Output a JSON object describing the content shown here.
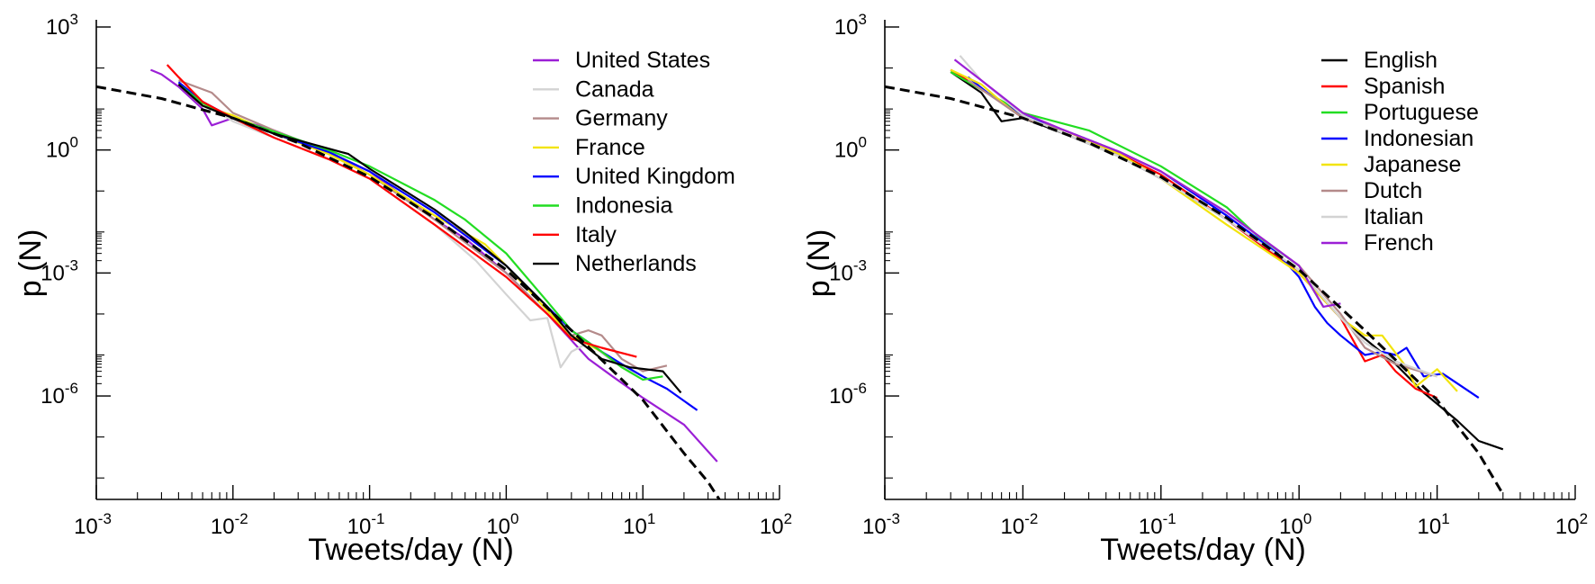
{
  "chart_data": [
    {
      "type": "line",
      "xscale": "log",
      "yscale": "log",
      "xlim": [
        0.001,
        100
      ],
      "ylim": [
        3e-09,
        1000
      ],
      "xlabel": "Tweets/day (N)",
      "ylabel": "p (N)",
      "xticks": [
        {
          "base": "10",
          "exp": "-3"
        },
        {
          "base": "10",
          "exp": "-2"
        },
        {
          "base": "10",
          "exp": "-1"
        },
        {
          "base": "10",
          "exp": "0"
        },
        {
          "base": "10",
          "exp": "1"
        },
        {
          "base": "10",
          "exp": "2"
        }
      ],
      "yticks": [
        {
          "base": "10",
          "exp": "-6",
          "value": 1e-06
        },
        {
          "base": "10",
          "exp": "-3",
          "value": 0.001
        },
        {
          "base": "10",
          "exp": "0",
          "value": 1
        },
        {
          "base": "10",
          "exp": "3",
          "value": 1000
        }
      ],
      "legend_position": "top-right",
      "fit": {
        "style": "dashed",
        "color": "#000000",
        "x": [
          0.001,
          0.003,
          0.01,
          0.03,
          0.1,
          0.3,
          1,
          3,
          10,
          20,
          30,
          40
        ],
        "y": [
          35,
          18,
          6,
          1.5,
          0.22,
          0.022,
          0.0012,
          4e-05,
          8e-07,
          4e-08,
          8e-09,
          1.8e-09
        ]
      },
      "series": [
        {
          "name": "United States",
          "color": "#9b1fd6",
          "x": [
            0.0025,
            0.003,
            0.004,
            0.006,
            0.007,
            0.01,
            0.02,
            0.05,
            0.1,
            0.3,
            0.5,
            1,
            2,
            4,
            6,
            10,
            20,
            35
          ],
          "y": [
            90,
            70,
            35,
            10,
            4,
            6,
            3,
            0.9,
            0.3,
            0.02,
            0.007,
            0.001,
            0.0001,
            8e-06,
            3e-06,
            9e-07,
            2e-07,
            2.5e-08
          ]
        },
        {
          "name": "Canada",
          "color": "#d3d3d3",
          "x": [
            0.004,
            0.006,
            0.01,
            0.02,
            0.05,
            0.1,
            0.3,
            0.6,
            1,
            1.5,
            2,
            2.5,
            3,
            4,
            6,
            10
          ],
          "y": [
            45,
            15,
            5,
            2,
            0.6,
            0.2,
            0.015,
            0.002,
            0.0003,
            7e-05,
            8e-05,
            5e-06,
            1.2e-05,
            2e-05,
            7e-06,
            3e-06
          ]
        },
        {
          "name": "Germany",
          "color": "#b48a8a",
          "x": [
            0.004,
            0.007,
            0.01,
            0.02,
            0.05,
            0.1,
            0.3,
            1,
            2,
            3,
            4,
            5,
            7,
            10,
            15
          ],
          "y": [
            50,
            25,
            8,
            3,
            0.9,
            0.25,
            0.02,
            0.001,
            0.0001,
            3e-05,
            4e-05,
            3e-05,
            8e-06,
            4e-06,
            5.5e-06
          ]
        },
        {
          "name": "France",
          "color": "#f2e40c",
          "x": [
            0.004,
            0.006,
            0.01,
            0.02,
            0.05,
            0.1,
            0.3,
            0.7,
            1,
            2,
            3,
            5
          ],
          "y": [
            40,
            12,
            7,
            2.5,
            0.8,
            0.25,
            0.025,
            0.005,
            0.0015,
            0.00012,
            3e-05,
            1.2e-05
          ]
        },
        {
          "name": "United Kingdom",
          "color": "#0000ff",
          "x": [
            0.004,
            0.006,
            0.01,
            0.02,
            0.05,
            0.1,
            0.3,
            1,
            2,
            3,
            5,
            7,
            10,
            15,
            25
          ],
          "y": [
            45,
            15,
            6,
            2.5,
            0.9,
            0.3,
            0.03,
            0.0015,
            0.00015,
            4e-05,
            1.2e-05,
            6e-06,
            3e-06,
            1.5e-06,
            4.5e-07
          ]
        },
        {
          "name": "Indonesia",
          "color": "#22dd22",
          "x": [
            0.004,
            0.006,
            0.01,
            0.02,
            0.05,
            0.1,
            0.3,
            0.5,
            1,
            2,
            3,
            5,
            7,
            10,
            14
          ],
          "y": [
            40,
            14,
            6,
            2.8,
            1,
            0.4,
            0.06,
            0.02,
            0.003,
            0.0002,
            4e-05,
            1.2e-05,
            5e-06,
            2.5e-06,
            3e-06
          ]
        },
        {
          "name": "Italy",
          "color": "#ff0000",
          "x": [
            0.0033,
            0.004,
            0.006,
            0.01,
            0.02,
            0.05,
            0.1,
            0.3,
            1,
            2,
            3,
            5,
            9
          ],
          "y": [
            120,
            60,
            15,
            6,
            2,
            0.6,
            0.2,
            0.015,
            0.0008,
            0.0001,
            2.5e-05,
            1.5e-05,
            9e-06
          ]
        },
        {
          "name": "Netherlands",
          "color": "#000000",
          "x": [
            0.004,
            0.006,
            0.01,
            0.02,
            0.07,
            0.1,
            0.3,
            0.5,
            1,
            2,
            3,
            5,
            8,
            14,
            19
          ],
          "y": [
            40,
            12,
            6,
            2.5,
            0.8,
            0.35,
            0.035,
            0.01,
            0.0015,
            0.00015,
            3e-05,
            8e-06,
            5e-06,
            4e-06,
            1.2e-06
          ]
        }
      ]
    },
    {
      "type": "line",
      "xscale": "log",
      "yscale": "log",
      "xlim": [
        0.001,
        100
      ],
      "ylim": [
        3e-09,
        1000
      ],
      "xlabel": "Tweets/day (N)",
      "ylabel": "p (N)",
      "xticks": [
        {
          "base": "10",
          "exp": "-3"
        },
        {
          "base": "10",
          "exp": "-2"
        },
        {
          "base": "10",
          "exp": "-1"
        },
        {
          "base": "10",
          "exp": "0"
        },
        {
          "base": "10",
          "exp": "1"
        },
        {
          "base": "10",
          "exp": "2"
        }
      ],
      "yticks": [
        {
          "base": "10",
          "exp": "-6",
          "value": 1e-06
        },
        {
          "base": "10",
          "exp": "-3",
          "value": 0.001
        },
        {
          "base": "10",
          "exp": "0",
          "value": 1
        },
        {
          "base": "10",
          "exp": "3",
          "value": 1000
        }
      ],
      "legend_position": "top-right",
      "fit": {
        "style": "dashed",
        "color": "#000000",
        "x": [
          0.001,
          0.003,
          0.01,
          0.03,
          0.1,
          0.3,
          1,
          3,
          10,
          20,
          30
        ],
        "y": [
          35,
          18,
          6,
          1.5,
          0.22,
          0.022,
          0.0012,
          4e-05,
          8e-07,
          4e-08,
          4e-09
        ]
      },
      "series": [
        {
          "name": "English",
          "color": "#000000",
          "x": [
            0.003,
            0.005,
            0.007,
            0.01,
            0.02,
            0.05,
            0.1,
            0.3,
            1,
            2,
            3,
            5,
            8,
            14,
            20,
            30
          ],
          "y": [
            80,
            25,
            5,
            6,
            2.5,
            0.7,
            0.2,
            0.02,
            0.001,
            8e-05,
            2.5e-05,
            6e-06,
            1.2e-06,
            2.5e-07,
            8e-08,
            5e-08
          ]
        },
        {
          "name": "Spanish",
          "color": "#ff0000",
          "x": [
            0.003,
            0.005,
            0.01,
            0.02,
            0.05,
            0.1,
            0.3,
            1,
            2,
            3,
            4,
            5,
            7,
            10
          ],
          "y": [
            90,
            30,
            7,
            3,
            0.8,
            0.25,
            0.02,
            0.001,
            8e-05,
            7e-06,
            1e-05,
            4e-06,
            1.5e-06,
            9e-07
          ]
        },
        {
          "name": "Portuguese",
          "color": "#22dd22",
          "x": [
            0.003,
            0.005,
            0.01,
            0.03,
            0.1,
            0.3,
            0.5,
            1,
            1.5
          ],
          "y": [
            80,
            30,
            8,
            3,
            0.4,
            0.04,
            0.008,
            0.0015,
            0.00015
          ]
        },
        {
          "name": "Indonesian",
          "color": "#0000ff",
          "x": [
            0.004,
            0.006,
            0.01,
            0.02,
            0.05,
            0.1,
            0.3,
            0.7,
            1,
            1.3,
            1.6,
            2,
            3,
            4,
            5,
            6,
            8,
            11,
            20
          ],
          "y": [
            60,
            20,
            7,
            3,
            0.9,
            0.3,
            0.025,
            0.003,
            0.0008,
            0.00015,
            6e-05,
            3e-05,
            1e-05,
            1.2e-05,
            1e-05,
            1.5e-05,
            3e-06,
            3.5e-06,
            9e-07
          ]
        },
        {
          "name": "Japanese",
          "color": "#f2e40c",
          "x": [
            0.003,
            0.005,
            0.007,
            0.01,
            0.02,
            0.05,
            0.1,
            0.3,
            1,
            2,
            3,
            4,
            6,
            7,
            10,
            14
          ],
          "y": [
            90,
            40,
            15,
            6,
            3,
            0.8,
            0.2,
            0.015,
            0.001,
            8e-05,
            3e-05,
            3e-05,
            5e-06,
            1.7e-06,
            4.5e-06,
            1.3e-06
          ]
        },
        {
          "name": "Dutch",
          "color": "#b48a8a",
          "x": [
            0.004,
            0.006,
            0.01,
            0.02,
            0.05,
            0.1,
            0.3,
            1,
            2,
            3,
            5,
            10
          ],
          "y": [
            50,
            20,
            6,
            3,
            0.9,
            0.3,
            0.03,
            0.0015,
            0.0001,
            1.5e-05,
            6e-06,
            3e-06
          ]
        },
        {
          "name": "Italian",
          "color": "#d3d3d3",
          "x": [
            0.0035,
            0.005,
            0.01,
            0.02,
            0.05,
            0.1,
            0.3,
            1,
            2,
            3,
            5,
            10
          ],
          "y": [
            200,
            50,
            7,
            2.5,
            0.7,
            0.2,
            0.02,
            0.0012,
            8e-05,
            2e-05,
            7e-06,
            3e-06
          ]
        },
        {
          "name": "French",
          "color": "#9b1fd6",
          "x": [
            0.0032,
            0.005,
            0.01,
            0.02,
            0.05,
            0.1,
            0.3,
            1,
            1.5,
            2
          ],
          "y": [
            160,
            50,
            8,
            3,
            0.9,
            0.3,
            0.03,
            0.0015,
            0.00015,
            0.00018
          ]
        }
      ]
    }
  ]
}
